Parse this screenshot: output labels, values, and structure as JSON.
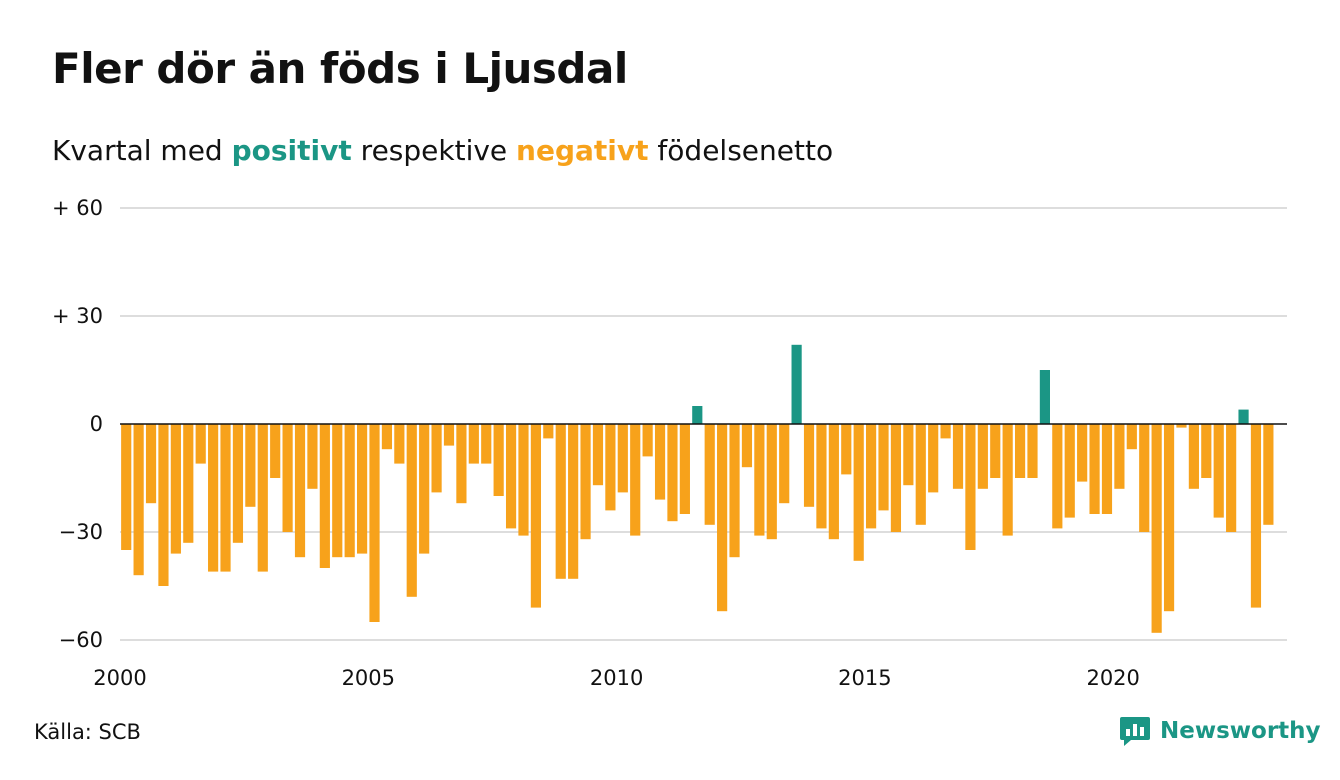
{
  "title": "Fler dör än föds i Ljusdal",
  "subtitle": {
    "prefix": "Kvartal med ",
    "positive_word": "positivt",
    "middle": " respektive ",
    "negative_word": "negativt",
    "suffix": " födelsenetto"
  },
  "source": "Källa: SCB",
  "brand": {
    "name": "Newsworthy",
    "logo_icon": "bar-chart-speech-bubble-icon"
  },
  "colors": {
    "positive": "#1b9685",
    "negative": "#f7a21b",
    "grid": "#dddddd",
    "zero_line": "#111111",
    "text": "#111111"
  },
  "chart_data": {
    "type": "bar",
    "title": "Fler dör än föds i Ljusdal",
    "subtitle": "Kvartal med positivt respektive negativt födelsenetto",
    "xlabel": "",
    "ylabel": "",
    "x_start": 2000,
    "periods_per_year": 4,
    "xlim": [
      2000,
      2023.5
    ],
    "ylim": [
      -60,
      60
    ],
    "y_ticks": [
      {
        "value": 60,
        "label": "+ 60"
      },
      {
        "value": 30,
        "label": "+ 30"
      },
      {
        "value": 0,
        "label": "0"
      },
      {
        "value": -30,
        "label": "−30"
      },
      {
        "value": -60,
        "label": "−60"
      }
    ],
    "x_ticks": [
      {
        "value": 2000,
        "label": "2000"
      },
      {
        "value": 2005,
        "label": "2005"
      },
      {
        "value": 2010,
        "label": "2010"
      },
      {
        "value": 2015,
        "label": "2015"
      },
      {
        "value": 2020,
        "label": "2020"
      }
    ],
    "grid": true,
    "legend": "none",
    "values": [
      -35,
      -42,
      -22,
      -45,
      -36,
      -33,
      -11,
      -41,
      -41,
      -33,
      -23,
      -41,
      -15,
      -30,
      -37,
      -18,
      -40,
      -37,
      -37,
      -36,
      -55,
      -7,
      -11,
      -48,
      -36,
      -19,
      -6,
      -22,
      -11,
      -11,
      -20,
      -29,
      -31,
      -51,
      -4,
      -43,
      -43,
      -32,
      -17,
      -24,
      -19,
      -31,
      -9,
      -21,
      -27,
      -25,
      5,
      -28,
      -52,
      -37,
      -12,
      -31,
      -32,
      -22,
      22,
      -23,
      -29,
      -32,
      -14,
      -38,
      -29,
      -24,
      -30,
      -17,
      -28,
      -19,
      -4,
      -18,
      -35,
      -18,
      -15,
      -31,
      -15,
      -15,
      15,
      -29,
      -26,
      -16,
      -25,
      -25,
      -18,
      -7,
      -30,
      -58,
      -52,
      -1,
      -18,
      -15,
      -26,
      -30,
      4,
      -51,
      -28
    ]
  }
}
